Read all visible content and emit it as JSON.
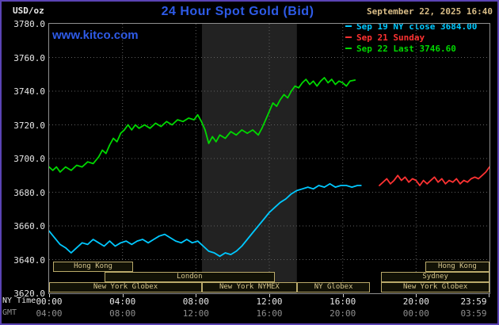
{
  "frame": {
    "bg": "#000000",
    "border_color": "#5a43b4"
  },
  "header": {
    "units_label": "USD/oz",
    "title": "24 Hour Spot Gold (Bid)",
    "title_color": "#2e5be8",
    "datetime": "September 22, 2025 16:40",
    "watermark": "www.kitco.com"
  },
  "legend": [
    {
      "label": "Sep 19 NY close 3684.00",
      "color": "#00c8ff"
    },
    {
      "label": "Sep 21 Sunday",
      "color": "#ff3232"
    },
    {
      "label": "Sep 22 Last 3746.60",
      "color": "#00d800"
    }
  ],
  "axis": {
    "ny_label": "NY Time",
    "gmt_label": "GMT",
    "tick_hours": [
      0,
      4,
      8,
      12,
      16,
      20,
      24
    ],
    "ny_ticks": [
      "00:00",
      "04:00",
      "08:00",
      "12:00",
      "16:00",
      "20:00",
      "23:59"
    ],
    "gmt_ticks": [
      "04:00",
      "08:00",
      "12:00",
      "16:00",
      "20:00",
      "00:00",
      "03:59"
    ]
  },
  "chart_data": {
    "type": "line",
    "title": "24 Hour Spot Gold (Bid)",
    "ylabel": "USD/oz",
    "ylim": [
      3620,
      3780
    ],
    "ytick_step": 20,
    "xlim_hours": [
      0,
      24
    ],
    "grid": true,
    "grid_color": "#5f5f5f",
    "plot_bg": "#000000",
    "session_border": "#b9a96a",
    "session_text": "#d6c68e",
    "nymex_band": {
      "start_h": 8.33,
      "end_h": 13.5,
      "color": "#222222"
    },
    "series": [
      {
        "name": "Sep 19 NY close 3684.00",
        "color": "#00c8ff",
        "points": [
          [
            0,
            3657
          ],
          [
            0.3,
            3653
          ],
          [
            0.6,
            3649
          ],
          [
            0.9,
            3647
          ],
          [
            1.2,
            3644
          ],
          [
            1.5,
            3647
          ],
          [
            1.8,
            3650
          ],
          [
            2.1,
            3649
          ],
          [
            2.4,
            3652
          ],
          [
            2.7,
            3650
          ],
          [
            3.0,
            3648
          ],
          [
            3.3,
            3651
          ],
          [
            3.6,
            3648
          ],
          [
            3.9,
            3650
          ],
          [
            4.2,
            3651
          ],
          [
            4.5,
            3649
          ],
          [
            4.8,
            3651
          ],
          [
            5.1,
            3652
          ],
          [
            5.4,
            3650
          ],
          [
            5.7,
            3652
          ],
          [
            6.0,
            3654
          ],
          [
            6.3,
            3655
          ],
          [
            6.6,
            3653
          ],
          [
            6.9,
            3651
          ],
          [
            7.2,
            3650
          ],
          [
            7.5,
            3652
          ],
          [
            7.8,
            3650
          ],
          [
            8.1,
            3651
          ],
          [
            8.4,
            3648
          ],
          [
            8.7,
            3645
          ],
          [
            9.0,
            3644
          ],
          [
            9.3,
            3642
          ],
          [
            9.6,
            3644
          ],
          [
            9.9,
            3643
          ],
          [
            10.2,
            3645
          ],
          [
            10.5,
            3648
          ],
          [
            10.8,
            3652
          ],
          [
            11.1,
            3656
          ],
          [
            11.4,
            3660
          ],
          [
            11.7,
            3664
          ],
          [
            12.0,
            3668
          ],
          [
            12.3,
            3671
          ],
          [
            12.6,
            3674
          ],
          [
            12.9,
            3676
          ],
          [
            13.2,
            3679
          ],
          [
            13.5,
            3681
          ],
          [
            13.8,
            3682
          ],
          [
            14.1,
            3683
          ],
          [
            14.4,
            3682
          ],
          [
            14.7,
            3684
          ],
          [
            15.0,
            3683
          ],
          [
            15.3,
            3685
          ],
          [
            15.6,
            3683
          ],
          [
            15.9,
            3684
          ],
          [
            16.2,
            3684
          ],
          [
            16.5,
            3683
          ],
          [
            16.8,
            3684
          ],
          [
            17.0,
            3684
          ]
        ]
      },
      {
        "name": "Sep 21 Sunday",
        "color": "#ff3232",
        "points": [
          [
            18.0,
            3684
          ],
          [
            18.2,
            3686
          ],
          [
            18.4,
            3688
          ],
          [
            18.6,
            3685
          ],
          [
            18.8,
            3687
          ],
          [
            19.0,
            3690
          ],
          [
            19.2,
            3687
          ],
          [
            19.4,
            3689
          ],
          [
            19.6,
            3686
          ],
          [
            19.8,
            3688
          ],
          [
            20.0,
            3687
          ],
          [
            20.2,
            3684
          ],
          [
            20.4,
            3687
          ],
          [
            20.6,
            3685
          ],
          [
            20.8,
            3687
          ],
          [
            21.0,
            3689
          ],
          [
            21.2,
            3686
          ],
          [
            21.4,
            3688
          ],
          [
            21.6,
            3685
          ],
          [
            21.8,
            3687
          ],
          [
            22.0,
            3686
          ],
          [
            22.2,
            3688
          ],
          [
            22.4,
            3685
          ],
          [
            22.6,
            3687
          ],
          [
            22.8,
            3686
          ],
          [
            23.0,
            3688
          ],
          [
            23.2,
            3689
          ],
          [
            23.4,
            3688
          ],
          [
            23.6,
            3690
          ],
          [
            23.8,
            3692
          ],
          [
            24.0,
            3695
          ]
        ]
      },
      {
        "name": "Sep 22 Last 3746.60",
        "color": "#00d800",
        "points": [
          [
            0,
            3695
          ],
          [
            0.2,
            3693
          ],
          [
            0.4,
            3695
          ],
          [
            0.6,
            3692
          ],
          [
            0.9,
            3695
          ],
          [
            1.2,
            3693
          ],
          [
            1.5,
            3696
          ],
          [
            1.8,
            3695
          ],
          [
            2.1,
            3698
          ],
          [
            2.4,
            3697
          ],
          [
            2.7,
            3701
          ],
          [
            2.9,
            3705
          ],
          [
            3.1,
            3703
          ],
          [
            3.3,
            3708
          ],
          [
            3.5,
            3712
          ],
          [
            3.7,
            3710
          ],
          [
            3.9,
            3715
          ],
          [
            4.1,
            3717
          ],
          [
            4.3,
            3720
          ],
          [
            4.5,
            3717
          ],
          [
            4.7,
            3720
          ],
          [
            4.9,
            3718
          ],
          [
            5.2,
            3720
          ],
          [
            5.5,
            3718
          ],
          [
            5.8,
            3721
          ],
          [
            6.1,
            3719
          ],
          [
            6.4,
            3722
          ],
          [
            6.7,
            3720
          ],
          [
            7.0,
            3723
          ],
          [
            7.3,
            3722
          ],
          [
            7.6,
            3724
          ],
          [
            7.9,
            3723
          ],
          [
            8.1,
            3726
          ],
          [
            8.3,
            3722
          ],
          [
            8.5,
            3717
          ],
          [
            8.7,
            3709
          ],
          [
            8.9,
            3713
          ],
          [
            9.1,
            3710
          ],
          [
            9.3,
            3714
          ],
          [
            9.6,
            3712
          ],
          [
            9.9,
            3716
          ],
          [
            10.2,
            3714
          ],
          [
            10.5,
            3717
          ],
          [
            10.8,
            3715
          ],
          [
            11.1,
            3717
          ],
          [
            11.4,
            3714
          ],
          [
            11.6,
            3718
          ],
          [
            11.8,
            3723
          ],
          [
            12.0,
            3728
          ],
          [
            12.2,
            3733
          ],
          [
            12.4,
            3731
          ],
          [
            12.6,
            3735
          ],
          [
            12.8,
            3738
          ],
          [
            13.0,
            3736
          ],
          [
            13.2,
            3740
          ],
          [
            13.4,
            3743
          ],
          [
            13.6,
            3742
          ],
          [
            13.8,
            3745
          ],
          [
            14.0,
            3747
          ],
          [
            14.2,
            3744
          ],
          [
            14.4,
            3746
          ],
          [
            14.6,
            3743
          ],
          [
            14.8,
            3746
          ],
          [
            15.0,
            3748
          ],
          [
            15.2,
            3745
          ],
          [
            15.4,
            3747
          ],
          [
            15.6,
            3744
          ],
          [
            15.8,
            3746
          ],
          [
            16.0,
            3745
          ],
          [
            16.2,
            3743
          ],
          [
            16.4,
            3746
          ],
          [
            16.67,
            3746.6
          ]
        ]
      }
    ],
    "sessions": [
      {
        "row": 0,
        "label": "Hong Kong",
        "start": 0.2,
        "end": 4.6
      },
      {
        "row": 0,
        "label": "Hong Kong",
        "start": 20.5,
        "end": 24
      },
      {
        "row": 1,
        "label": "London",
        "start": 3.0,
        "end": 12.3
      },
      {
        "row": 1,
        "label": "Sydney",
        "start": 18.1,
        "end": 24
      },
      {
        "row": 2,
        "label": "New York Globex",
        "start": 0,
        "end": 8.33
      },
      {
        "row": 2,
        "label": "New York NYMEX",
        "start": 8.33,
        "end": 13.5
      },
      {
        "row": 2,
        "label": "NY Globex",
        "start": 13.5,
        "end": 17.5
      },
      {
        "row": 2,
        "label": "New York Globex",
        "start": 18.1,
        "end": 24
      }
    ]
  }
}
